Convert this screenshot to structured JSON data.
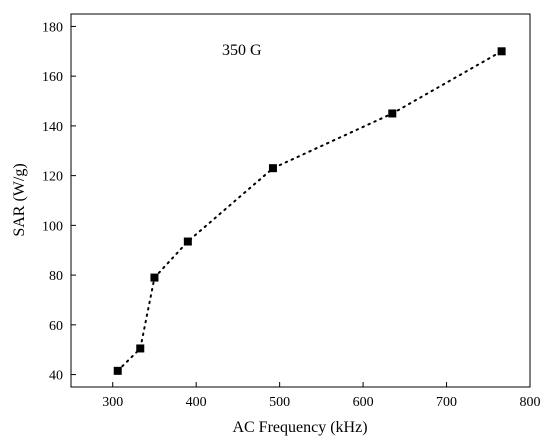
{
  "chart_data": {
    "type": "scatter",
    "title": "",
    "annotation": "350 G",
    "xlabel": "AC Frequency (kHz)",
    "ylabel": "SAR (W/g)",
    "xlim": [
      250,
      800
    ],
    "ylim": [
      35,
      185
    ],
    "xticks": [
      300,
      400,
      500,
      600,
      700,
      800
    ],
    "yticks": [
      40,
      60,
      80,
      100,
      120,
      140,
      160,
      180
    ],
    "grid": false,
    "legend": "none",
    "series": [
      {
        "marker": "square",
        "line_style": "dotted",
        "color": "#000000",
        "x": [
          306,
          333,
          350,
          390,
          492,
          635,
          766
        ],
        "y": [
          41.5,
          50.5,
          79,
          93.5,
          123,
          145,
          170
        ]
      }
    ]
  }
}
